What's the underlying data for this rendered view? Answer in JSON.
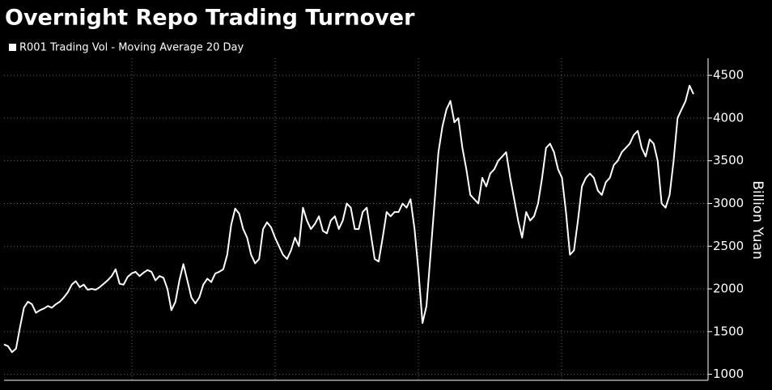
{
  "chart_data": {
    "type": "line",
    "title": "Overnight Repo Trading Turnover",
    "y_label": "Billion Yuan",
    "series": [
      {
        "name": "R001 Trading Vol - Moving Average 20 Day",
        "color": "#ffffff",
        "values": [
          1350,
          1330,
          1260,
          1300,
          1550,
          1780,
          1850,
          1820,
          1720,
          1750,
          1770,
          1800,
          1780,
          1820,
          1850,
          1900,
          1960,
          2050,
          2090,
          2020,
          2050,
          1990,
          2000,
          1990,
          2020,
          2060,
          2100,
          2150,
          2230,
          2060,
          2050,
          2140,
          2180,
          2200,
          2150,
          2190,
          2220,
          2200,
          2100,
          2150,
          2130,
          2000,
          1750,
          1850,
          2100,
          2290,
          2100,
          1900,
          1830,
          1900,
          2050,
          2120,
          2080,
          2180,
          2200,
          2230,
          2400,
          2750,
          2940,
          2880,
          2700,
          2600,
          2400,
          2300,
          2350,
          2700,
          2780,
          2720,
          2600,
          2500,
          2400,
          2350,
          2450,
          2600,
          2500,
          2950,
          2800,
          2700,
          2760,
          2850,
          2680,
          2650,
          2800,
          2850,
          2700,
          2800,
          3000,
          2950,
          2700,
          2700,
          2900,
          2950,
          2650,
          2350,
          2320,
          2600,
          2900,
          2850,
          2900,
          2900,
          3000,
          2950,
          3050,
          2700,
          2200,
          1600,
          1800,
          2400,
          3000,
          3600,
          3900,
          4100,
          4200,
          3950,
          4000,
          3650,
          3400,
          3100,
          3050,
          3000,
          3300,
          3200,
          3350,
          3400,
          3500,
          3550,
          3600,
          3300,
          3050,
          2800,
          2600,
          2900,
          2800,
          2850,
          3000,
          3300,
          3650,
          3700,
          3600,
          3400,
          3300,
          2900,
          2400,
          2450,
          2800,
          3200,
          3300,
          3350,
          3300,
          3150,
          3100,
          3250,
          3300,
          3450,
          3500,
          3600,
          3650,
          3700,
          3800,
          3850,
          3650,
          3550,
          3750,
          3700,
          3500,
          3000,
          2950,
          3100,
          3500,
          4000,
          4100,
          4200,
          4380,
          4280
        ]
      }
    ],
    "ylim": [
      930,
      4700
    ],
    "yticks": [
      1000,
      1500,
      2000,
      2500,
      3000,
      3500,
      4000,
      4500
    ],
    "grid": true
  }
}
